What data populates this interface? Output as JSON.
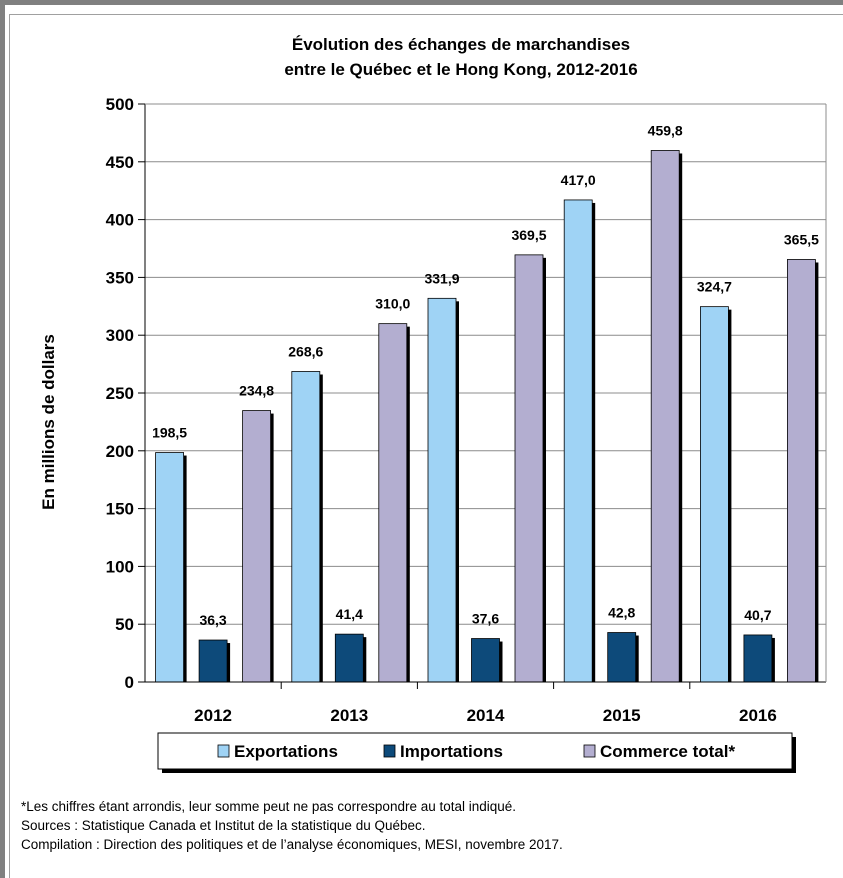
{
  "chart_data": {
    "type": "bar",
    "title": [
      "Évolution des échanges de marchandises",
      "entre le Québec et le Hong Kong, 2012-2016"
    ],
    "ylabel": "En millions de dollars",
    "xlabel": "",
    "ylim": [
      0,
      500
    ],
    "yticks": [
      0,
      50,
      100,
      150,
      200,
      250,
      300,
      350,
      400,
      450,
      500
    ],
    "grid": true,
    "legend_position": "bottom",
    "categories": [
      "2012",
      "2013",
      "2014",
      "2015",
      "2016"
    ],
    "series": [
      {
        "name": "Exportations",
        "color": "#9fd3f5",
        "values": [
          198.5,
          268.6,
          331.9,
          417.0,
          324.7
        ],
        "labels": [
          "198,5",
          "268,6",
          "331,9",
          "417,0",
          "324,7"
        ]
      },
      {
        "name": "Importations",
        "color": "#0d4a7a",
        "values": [
          36.3,
          41.4,
          37.6,
          42.8,
          40.7
        ],
        "labels": [
          "36,3",
          "41,4",
          "37,6",
          "42,8",
          "40,7"
        ]
      },
      {
        "name": "Commerce total*",
        "color": "#b3aed0",
        "values": [
          234.8,
          310.0,
          369.5,
          459.8,
          365.5
        ],
        "labels": [
          "234,8",
          "310,0",
          "369,5",
          "459,8",
          "365,5"
        ]
      }
    ]
  },
  "notes": {
    "footnote": "*Les chiffres étant arrondis, leur somme peut ne pas correspondre au total indiqué.",
    "sources": "Sources : Statistique Canada et Institut de la statistique du Québec.",
    "compilation": "Compilation : Direction des politiques et de l’analyse économiques, MESI, novembre 2017."
  }
}
